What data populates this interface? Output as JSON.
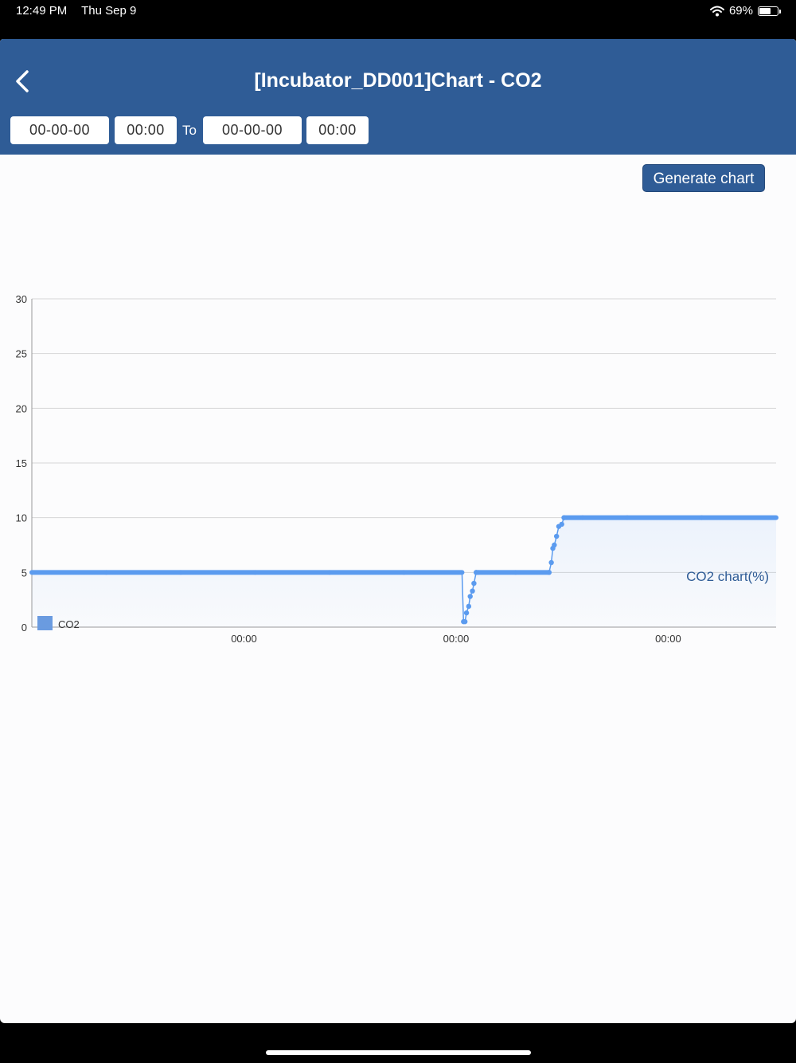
{
  "status": {
    "time": "12:49 PM",
    "date": "Thu Sep 9",
    "battery_text": "69%",
    "battery_level": 0.69
  },
  "header": {
    "title": "[Incubator_DD001]Chart - CO2",
    "from_date": "00-00-00",
    "from_time": "00:00",
    "to_label": "To",
    "to_date": "00-00-00",
    "to_time": "00:00"
  },
  "actions": {
    "generate_label": "Generate chart"
  },
  "colors": {
    "brand": "#2f5c96",
    "series": "#5b9bef",
    "legend_swatch": "#6a9be0"
  },
  "icons": {
    "back": "chevron-left-icon",
    "wifi": "wifi-icon",
    "battery": "battery-icon"
  },
  "chart_data": {
    "type": "line",
    "title": "",
    "chart_label": "CO2 chart(%)",
    "xlabel": "",
    "ylabel": "",
    "ylim": [
      0,
      30
    ],
    "xlim": [
      0,
      1000
    ],
    "yticks": [
      0,
      5,
      10,
      15,
      20,
      25,
      30
    ],
    "xticks": [
      {
        "value": 285,
        "label": "00:00"
      },
      {
        "value": 570,
        "label": "00:00"
      },
      {
        "value": 855,
        "label": "00:00"
      }
    ],
    "grid": true,
    "legend": "bottom-left",
    "series": [
      {
        "name": "CO2",
        "x": [
          0,
          100,
          200,
          300,
          400,
          500,
          578,
          580,
          582,
          584,
          587,
          589,
          592,
          594,
          597,
          600,
          650,
          695,
          698,
          700,
          702,
          705,
          708,
          712,
          715,
          740,
          800,
          900,
          1000
        ],
        "y": [
          5,
          5,
          5,
          5,
          5,
          5,
          5,
          0.5,
          0.5,
          1.3,
          1.9,
          2.8,
          3.3,
          4,
          5,
          5,
          5,
          5,
          5.9,
          7.2,
          7.5,
          8.3,
          9.2,
          9.4,
          10,
          10,
          10,
          10,
          10
        ],
        "markers": [
          580,
          582,
          584,
          587,
          589,
          592,
          594,
          597,
          695,
          698,
          700,
          702,
          705,
          708,
          712,
          715
        ]
      }
    ]
  }
}
